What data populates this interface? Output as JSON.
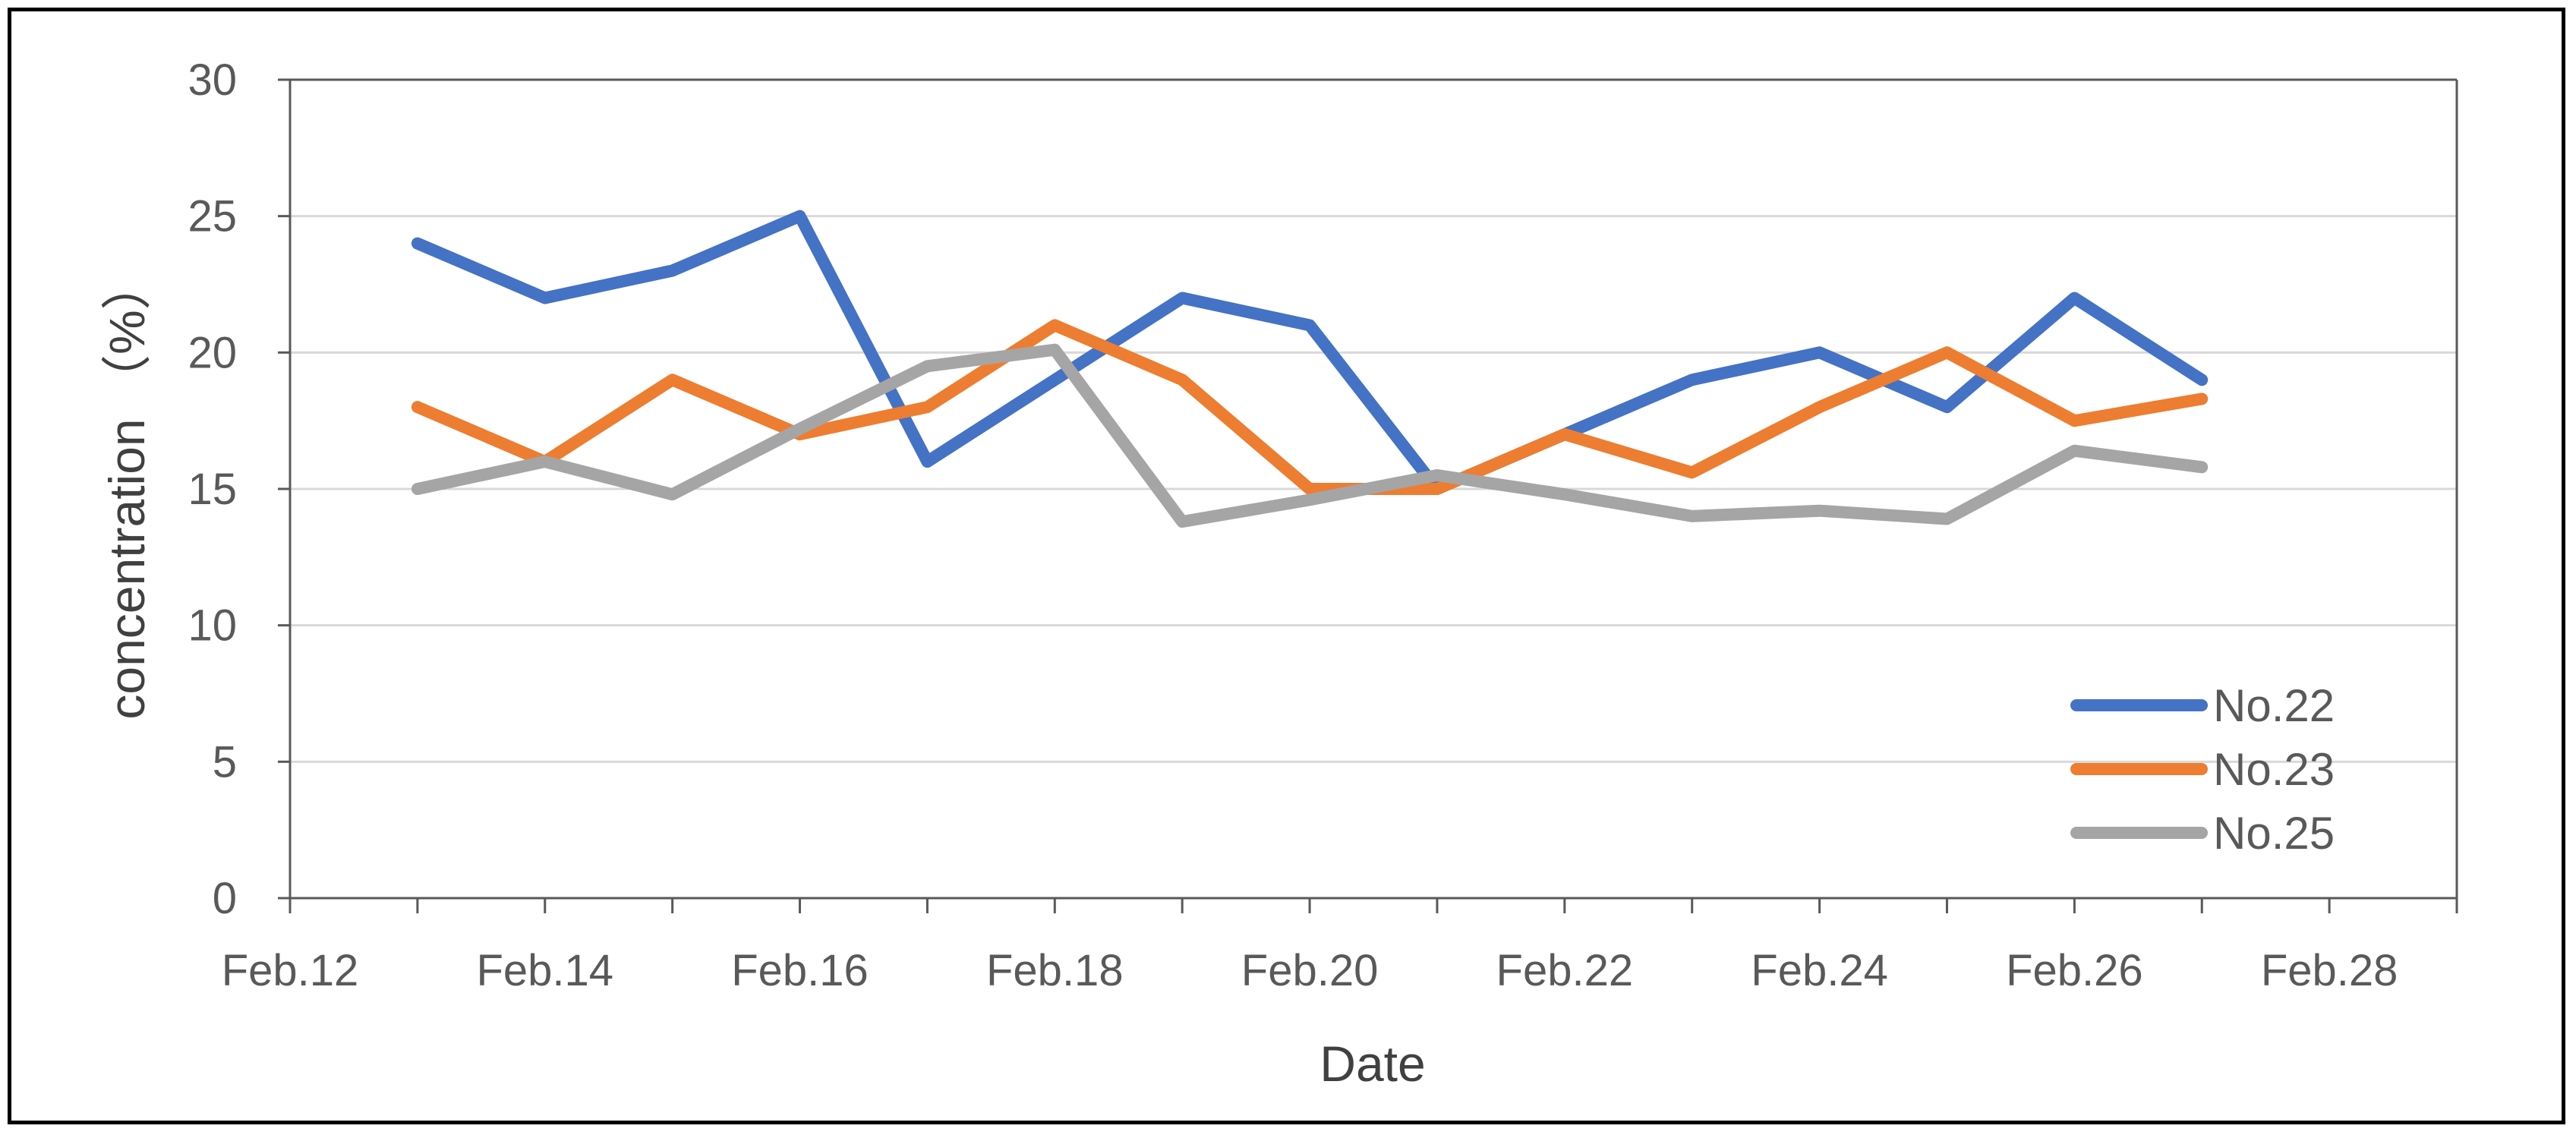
{
  "chart_data": {
    "type": "line",
    "xlabel": "Date",
    "ylabel": "concentration （%）",
    "ylim": [
      0,
      30
    ],
    "yticks": [
      "0",
      "5",
      "10",
      "15",
      "20",
      "25",
      "30"
    ],
    "xlim": [
      "Feb.12",
      "Feb.29"
    ],
    "xticks": [
      "Feb.12",
      "Feb.14",
      "Feb.16",
      "Feb.18",
      "Feb.20",
      "Feb.22",
      "Feb.24",
      "Feb.26",
      "Feb.28"
    ],
    "grid": "horizontal",
    "legend_position": "bottom-right",
    "x": [
      "Feb.13",
      "Feb.14",
      "Feb.15",
      "Feb.16",
      "Feb.17",
      "Feb.18",
      "Feb.19",
      "Feb.20",
      "Feb.21",
      "Feb.22",
      "Feb.23",
      "Feb.24",
      "Feb.25",
      "Feb.26",
      "Feb.27"
    ],
    "series": [
      {
        "name": "No.22",
        "color": "#4472C4",
        "values": [
          24,
          22,
          23,
          25,
          16,
          19,
          22,
          21,
          15,
          17,
          19,
          20,
          18,
          22,
          19
        ]
      },
      {
        "name": "No.23",
        "color": "#ED7D31",
        "values": [
          18,
          16,
          19,
          17,
          18,
          21,
          19,
          15,
          15,
          17,
          15.6,
          18,
          20,
          17.5,
          18.3
        ]
      },
      {
        "name": "No.25",
        "color": "#A5A5A5",
        "values": [
          15,
          16,
          14.8,
          17.2,
          19.5,
          20.1,
          13.8,
          14.6,
          15.5,
          14.8,
          14,
          14.2,
          13.9,
          16.4,
          15.8
        ]
      }
    ]
  }
}
